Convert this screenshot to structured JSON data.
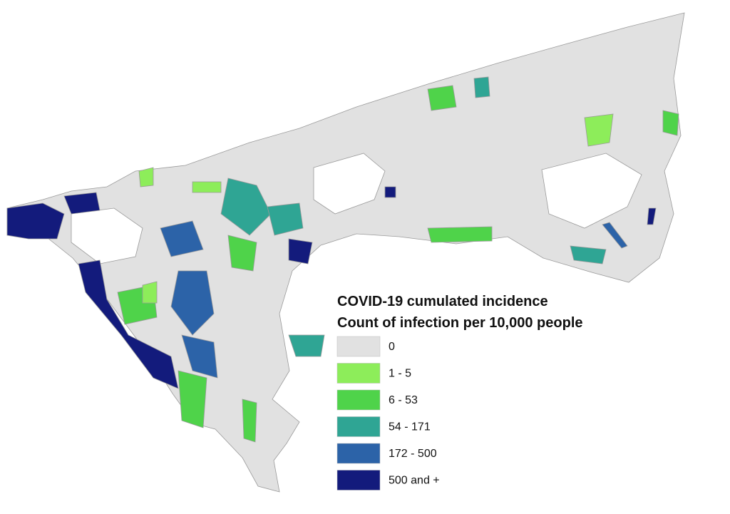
{
  "legend": {
    "title": "COVID-19 cumulated incidence",
    "subtitle": "Count of infection per 10,000 people",
    "items": [
      {
        "label": "0",
        "color": "#e1e1e1"
      },
      {
        "label": "1 - 5",
        "color": "#8ded5a"
      },
      {
        "label": "6 - 53",
        "color": "#4fd34a"
      },
      {
        "label": "54 - 171",
        "color": "#2fa594"
      },
      {
        "label": "172 - 500",
        "color": "#2c63a8"
      },
      {
        "label": "500 and +",
        "color": "#131b7c"
      }
    ]
  }
}
